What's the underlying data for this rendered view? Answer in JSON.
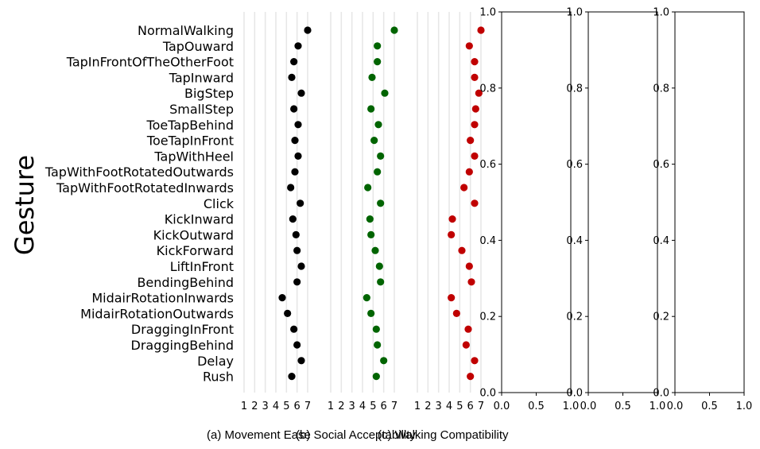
{
  "chart_data": {
    "type": "scatter",
    "ylabel": "Gesture",
    "categories": [
      "NormalWalking",
      "TapOuward",
      "TapInFrontOfTheOtherFoot",
      "TapInward",
      "BigStep",
      "SmallStep",
      "ToeTapBehind",
      "ToeTapInFront",
      "TapWithHeel",
      "TapWithFootRotatedOutwards",
      "TapWithFootRotatedInwards",
      "Click",
      "KickInward",
      "KickOutward",
      "KickForward",
      "LiftInFront",
      "BendingBehind",
      "MidairRotationInwards",
      "MidairRotationOutwards",
      "DraggingInFront",
      "DraggingBehind",
      "Delay",
      "Rush"
    ],
    "dot_xticks": [
      "1",
      "2",
      "3",
      "4",
      "5",
      "6",
      "7"
    ],
    "xlim": [
      1,
      7
    ],
    "series": [
      {
        "caption": "(a) Movement Ease",
        "color": "#000000",
        "values": [
          7.0,
          6.1,
          5.7,
          5.5,
          6.4,
          5.7,
          6.1,
          5.8,
          6.1,
          5.8,
          5.4,
          6.3,
          5.6,
          5.9,
          6.0,
          6.4,
          6.0,
          4.6,
          5.1,
          5.7,
          6.0,
          6.4,
          5.5
        ]
      },
      {
        "caption": "(b) Social Acceptability",
        "color": "#006400",
        "values": [
          7.0,
          5.4,
          5.4,
          4.9,
          6.1,
          4.8,
          5.5,
          5.1,
          5.7,
          5.4,
          4.5,
          5.7,
          4.7,
          4.8,
          5.2,
          5.6,
          5.7,
          4.4,
          4.8,
          5.3,
          5.4,
          6.0,
          5.3
        ]
      },
      {
        "caption": "(c) Walking Compatibility",
        "color": "#c00000",
        "values": [
          7.0,
          5.9,
          6.4,
          6.4,
          6.8,
          6.5,
          6.4,
          6.0,
          6.4,
          5.9,
          5.4,
          6.4,
          4.3,
          4.2,
          5.2,
          5.9,
          6.1,
          4.2,
          4.7,
          5.8,
          5.6,
          6.4,
          6.0
        ]
      }
    ],
    "empty_panels": {
      "xticks": [
        "0.0",
        "0.5",
        "1.0"
      ],
      "yticks": [
        "0.0",
        "0.2",
        "0.4",
        "0.6",
        "0.8",
        "1.0"
      ],
      "count": 3
    }
  }
}
